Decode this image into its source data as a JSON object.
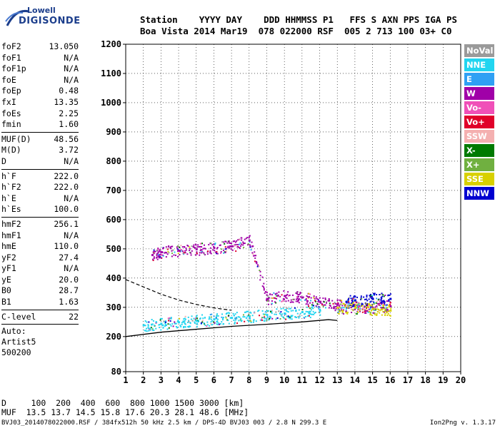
{
  "logo": {
    "line1": "Lowell",
    "line2": "DIGISONDE"
  },
  "header": {
    "line1": "Station    YYYY DAY    DDD HHMMSS P1   FFS S AXN PPS IGA PS",
    "line2": "Boa Vista 2014 Mar19  078 022000 RSF  005 2 713 100 03+ C0"
  },
  "params": {
    "group1": [
      [
        "foF2",
        "13.050"
      ],
      [
        "foF1",
        "N/A"
      ],
      [
        "foF1p",
        "N/A"
      ],
      [
        "foE",
        "N/A"
      ],
      [
        "foEp",
        "0.48"
      ],
      [
        "fxI",
        "13.35"
      ],
      [
        "foEs",
        "2.25"
      ],
      [
        "fmin",
        "1.60"
      ]
    ],
    "group2": [
      [
        "MUF(D)",
        "48.56"
      ],
      [
        "M(D)",
        "3.72"
      ],
      [
        "D",
        "N/A"
      ]
    ],
    "group3": [
      [
        "h`F",
        "222.0"
      ],
      [
        "h`F2",
        "222.0"
      ],
      [
        "h`E",
        "N/A"
      ],
      [
        "h`Es",
        "100.0"
      ]
    ],
    "group4": [
      [
        "hmF2",
        "256.1"
      ],
      [
        "hmF1",
        "N/A"
      ],
      [
        "hmE",
        "110.0"
      ],
      [
        "yF2",
        "27.4"
      ],
      [
        "yF1",
        "N/A"
      ],
      [
        "yE",
        "20.0"
      ],
      [
        "B0",
        "28.7"
      ],
      [
        "B1",
        "1.63"
      ]
    ],
    "group5": [
      [
        "C-level",
        "22"
      ]
    ]
  },
  "auto": {
    "line1": "Auto:",
    "line2": "Artist5",
    "line3": "500200"
  },
  "legend": [
    {
      "label": "NoVal",
      "color": "#9a9a9a"
    },
    {
      "label": "NNE",
      "color": "#22d5f0"
    },
    {
      "label": "E",
      "color": "#2fa0f4"
    },
    {
      "label": "W",
      "color": "#a000a8"
    },
    {
      "label": "Vo-",
      "color": "#f050b8"
    },
    {
      "label": "Vo+",
      "color": "#e0002a"
    },
    {
      "label": "SSW",
      "color": "#f4b0b0"
    },
    {
      "label": "X-",
      "color": "#007a00"
    },
    {
      "label": "X+",
      "color": "#70b040"
    },
    {
      "label": "SSE",
      "color": "#d8d000"
    },
    {
      "label": "NNW",
      "color": "#0000d0"
    }
  ],
  "chart_data": {
    "type": "scatter",
    "x_ticks": [
      1,
      2,
      3,
      4,
      5,
      6,
      7,
      8,
      9,
      10,
      11,
      12,
      13,
      14,
      15,
      16,
      17,
      18,
      19,
      20
    ],
    "y_ticks": [
      80,
      200,
      300,
      400,
      500,
      600,
      700,
      800,
      900,
      1000,
      1100,
      1200
    ],
    "xlim": [
      1,
      20
    ],
    "ylim": [
      80,
      1200
    ],
    "grid": true,
    "series": [
      {
        "name": "NNE",
        "color": "#22d5f0",
        "description": "dense trace",
        "points": [
          [
            2,
            240
          ],
          [
            3,
            245
          ],
          [
            4,
            250
          ],
          [
            5,
            255
          ],
          [
            6,
            260
          ],
          [
            7,
            265
          ],
          [
            8,
            270
          ],
          [
            9,
            275
          ],
          [
            10,
            280
          ],
          [
            11,
            285
          ],
          [
            12,
            290
          ]
        ]
      },
      {
        "name": "W",
        "color": "#a000a8",
        "points": [
          [
            2.5,
            480
          ],
          [
            3,
            490
          ],
          [
            4,
            495
          ],
          [
            5,
            500
          ],
          [
            6,
            505
          ],
          [
            7,
            510
          ],
          [
            8,
            530
          ],
          [
            9,
            330
          ],
          [
            10,
            340
          ],
          [
            11,
            335
          ],
          [
            12,
            320
          ],
          [
            13,
            310
          ],
          [
            14,
            300
          ],
          [
            15,
            300
          ],
          [
            16,
            305
          ]
        ]
      },
      {
        "name": "NNW",
        "color": "#0000d0",
        "points": [
          [
            13.5,
            320
          ],
          [
            14,
            325
          ],
          [
            15,
            330
          ],
          [
            16,
            330
          ]
        ]
      },
      {
        "name": "SSE",
        "color": "#d8d000",
        "points": [
          [
            13,
            300
          ],
          [
            14,
            300
          ],
          [
            15,
            295
          ],
          [
            16,
            290
          ]
        ]
      }
    ],
    "profile_curve": {
      "points": [
        [
          1,
          200
        ],
        [
          3,
          215
        ],
        [
          5,
          225
        ],
        [
          7,
          235
        ],
        [
          9,
          242
        ],
        [
          11,
          250
        ],
        [
          12.5,
          258
        ],
        [
          13,
          255
        ]
      ]
    },
    "dashed_curve": {
      "points": [
        [
          1,
          395
        ],
        [
          2,
          370
        ],
        [
          3,
          345
        ],
        [
          4,
          325
        ],
        [
          5,
          310
        ],
        [
          6,
          298
        ],
        [
          7,
          290
        ]
      ]
    }
  },
  "footer": {
    "line1": "D     100  200  400  600  800 1000 1500 3000 [km]",
    "line2": "MUF  13.5 13.7 14.5 15.8 17.6 20.3 28.1 48.6 [MHz]"
  },
  "bottom": {
    "left": "BVJ03_2014078022000.RSF / 384fx512h 50 kHz 2.5 km / DPS-4D BVJ03 003 / 2.8 N 299.3 E",
    "right": "Ion2Png v. 1.3.17"
  }
}
